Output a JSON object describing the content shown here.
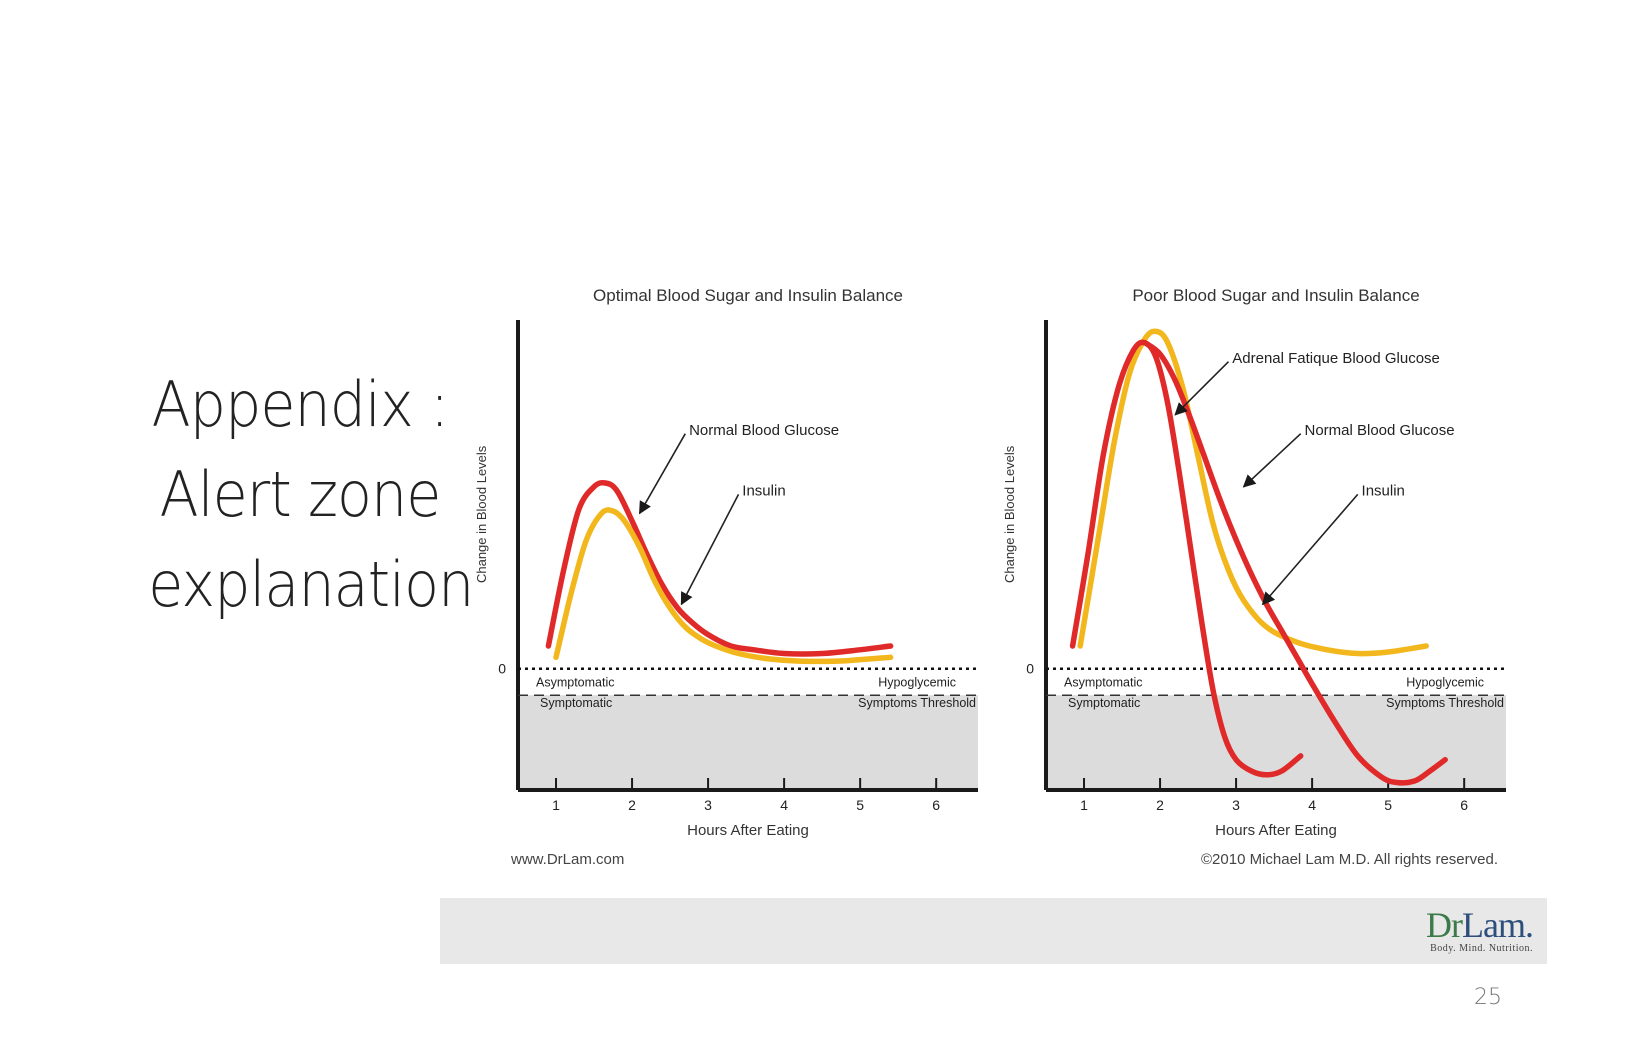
{
  "slide": {
    "title_lines": [
      "Appendix :",
      "Alert zone",
      "explanation"
    ],
    "page_number": "25",
    "footer_left": "www.DrLam.com",
    "footer_right": "©2010 Michael Lam M.D. All rights reserved.",
    "logo": {
      "dr": "Dr",
      "lam": "Lam",
      "dot": ".",
      "tagline": "Body. Mind. Nutrition."
    }
  },
  "colors": {
    "glucose": "#e02a2a",
    "insulin": "#f2b71c",
    "symptom_zone": "#dcdcdc",
    "axis": "#1a1a1a"
  },
  "chart_data": [
    {
      "type": "line",
      "title": "Optimal Blood Sugar and Insulin Balance",
      "xlabel": "Hours After Eating",
      "ylabel": "Change in Blood Levels",
      "x_ticks": [
        1,
        2,
        3,
        4,
        5,
        6
      ],
      "xlim": [
        0.5,
        6.55
      ],
      "ylim": [
        -1.6,
        4.6
      ],
      "zero_label": "0",
      "threshold": -0.35,
      "zone_labels": {
        "asymptomatic": "Asymptomatic",
        "symptomatic": "Symptomatic",
        "hypoglycemic": "Hypoglycemic",
        "threshold": "Symptoms Threshold"
      },
      "series": [
        {
          "name": "Normal Blood Glucose",
          "color": "glucose",
          "x": [
            0.9,
            1.1,
            1.3,
            1.5,
            1.65,
            1.8,
            2.0,
            2.2,
            2.4,
            2.6,
            2.8,
            3.0,
            3.3,
            3.6,
            4.0,
            4.5,
            5.0,
            5.4
          ],
          "y": [
            0.3,
            1.3,
            2.1,
            2.4,
            2.45,
            2.35,
            1.95,
            1.5,
            1.1,
            0.8,
            0.6,
            0.45,
            0.3,
            0.25,
            0.2,
            0.2,
            0.25,
            0.3
          ]
        },
        {
          "name": "Insulin",
          "color": "insulin",
          "x": [
            1.0,
            1.2,
            1.4,
            1.6,
            1.75,
            1.9,
            2.1,
            2.3,
            2.5,
            2.7,
            2.9,
            3.1,
            3.4,
            3.8,
            4.2,
            4.7,
            5.0,
            5.4
          ],
          "y": [
            0.15,
            1.0,
            1.7,
            2.05,
            2.08,
            1.95,
            1.6,
            1.15,
            0.8,
            0.55,
            0.4,
            0.3,
            0.2,
            0.13,
            0.1,
            0.1,
            0.12,
            0.15
          ]
        }
      ],
      "annotations": [
        {
          "text": "Normal Blood Glucose",
          "from": [
            2.7,
            3.1
          ],
          "to": [
            2.1,
            2.05
          ],
          "text_at": [
            2.75,
            3.15
          ]
        },
        {
          "text": "Insulin",
          "from": [
            3.4,
            2.3
          ],
          "to": [
            2.65,
            0.85
          ],
          "text_at": [
            3.45,
            2.35
          ]
        }
      ]
    },
    {
      "type": "line",
      "title": "Poor Blood Sugar and Insulin Balance",
      "xlabel": "Hours After Eating",
      "ylabel": "Change in Blood Levels",
      "x_ticks": [
        1,
        2,
        3,
        4,
        5,
        6
      ],
      "xlim": [
        0.5,
        6.55
      ],
      "ylim": [
        -1.6,
        4.6
      ],
      "zero_label": "0",
      "threshold": -0.35,
      "zone_labels": {
        "asymptomatic": "Asymptomatic",
        "symptomatic": "Symptomatic",
        "hypoglycemic": "Hypoglycemic",
        "threshold": "Symptoms Threshold"
      },
      "series": [
        {
          "name": "Insulin",
          "color": "insulin",
          "x": [
            0.95,
            1.2,
            1.4,
            1.6,
            1.8,
            1.95,
            2.1,
            2.3,
            2.5,
            2.7,
            2.9,
            3.1,
            3.4,
            3.8,
            4.2,
            4.6,
            5.0,
            5.5
          ],
          "y": [
            0.3,
            1.8,
            3.0,
            3.9,
            4.35,
            4.45,
            4.3,
            3.7,
            2.8,
            1.9,
            1.3,
            0.9,
            0.55,
            0.35,
            0.25,
            0.2,
            0.22,
            0.3
          ]
        },
        {
          "name": "Adrenal Fatique Blood Glucose",
          "color": "glucose",
          "x": [
            0.85,
            1.05,
            1.25,
            1.45,
            1.65,
            1.8,
            1.95,
            2.1,
            2.25,
            2.4,
            2.55,
            2.7,
            2.85,
            3.0,
            3.2,
            3.4,
            3.6,
            3.85
          ],
          "y": [
            0.3,
            1.5,
            2.8,
            3.7,
            4.2,
            4.3,
            4.1,
            3.5,
            2.6,
            1.6,
            0.6,
            -0.3,
            -0.9,
            -1.2,
            -1.35,
            -1.4,
            -1.35,
            -1.15
          ]
        },
        {
          "name": "Normal Blood Glucose",
          "color": "glucose",
          "x": [
            1.8,
            2.0,
            2.2,
            2.4,
            2.6,
            2.8,
            3.0,
            3.2,
            3.4,
            3.6,
            3.8,
            4.0,
            4.3,
            4.6,
            4.9,
            5.1,
            5.35,
            5.55,
            5.75
          ],
          "y": [
            4.3,
            4.15,
            3.8,
            3.3,
            2.75,
            2.2,
            1.7,
            1.25,
            0.85,
            0.5,
            0.15,
            -0.2,
            -0.7,
            -1.15,
            -1.42,
            -1.5,
            -1.48,
            -1.35,
            -1.2
          ]
        }
      ],
      "annotations": [
        {
          "text": "Adrenal Fatique Blood Glucose",
          "from": [
            2.9,
            4.05
          ],
          "to": [
            2.2,
            3.35
          ],
          "text_at": [
            2.95,
            4.1
          ]
        },
        {
          "text": "Normal Blood Glucose",
          "from": [
            3.85,
            3.1
          ],
          "to": [
            3.1,
            2.4
          ],
          "text_at": [
            3.9,
            3.15
          ]
        },
        {
          "text": "Insulin",
          "from": [
            4.6,
            2.3
          ],
          "to": [
            3.35,
            0.85
          ],
          "text_at": [
            4.65,
            2.35
          ]
        }
      ]
    }
  ]
}
